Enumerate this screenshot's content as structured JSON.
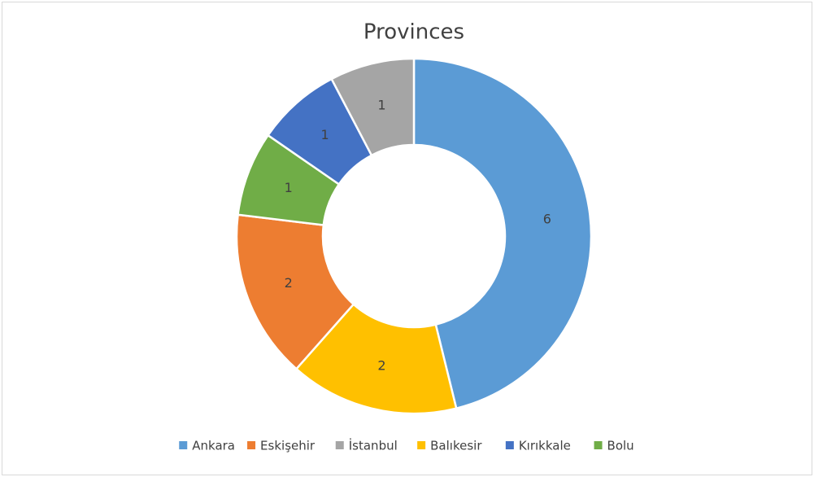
{
  "chart_data": {
    "type": "donut",
    "title": "Provinces",
    "categories": [
      "Ankara",
      "Balıkesir",
      "Eskişehir",
      "Bolu",
      "Kırıkkale",
      "İstanbul"
    ],
    "values": [
      6,
      2,
      2,
      1,
      1,
      1
    ],
    "colors": [
      "#5b9bd5",
      "#ffc000",
      "#ed7d31",
      "#70ad47",
      "#4472c4",
      "#a5a5a5"
    ],
    "legend": [
      "Ankara",
      "Eskişehir",
      "İstanbul",
      "Balıkesir",
      "Kırıkkale",
      "Bolu"
    ]
  }
}
